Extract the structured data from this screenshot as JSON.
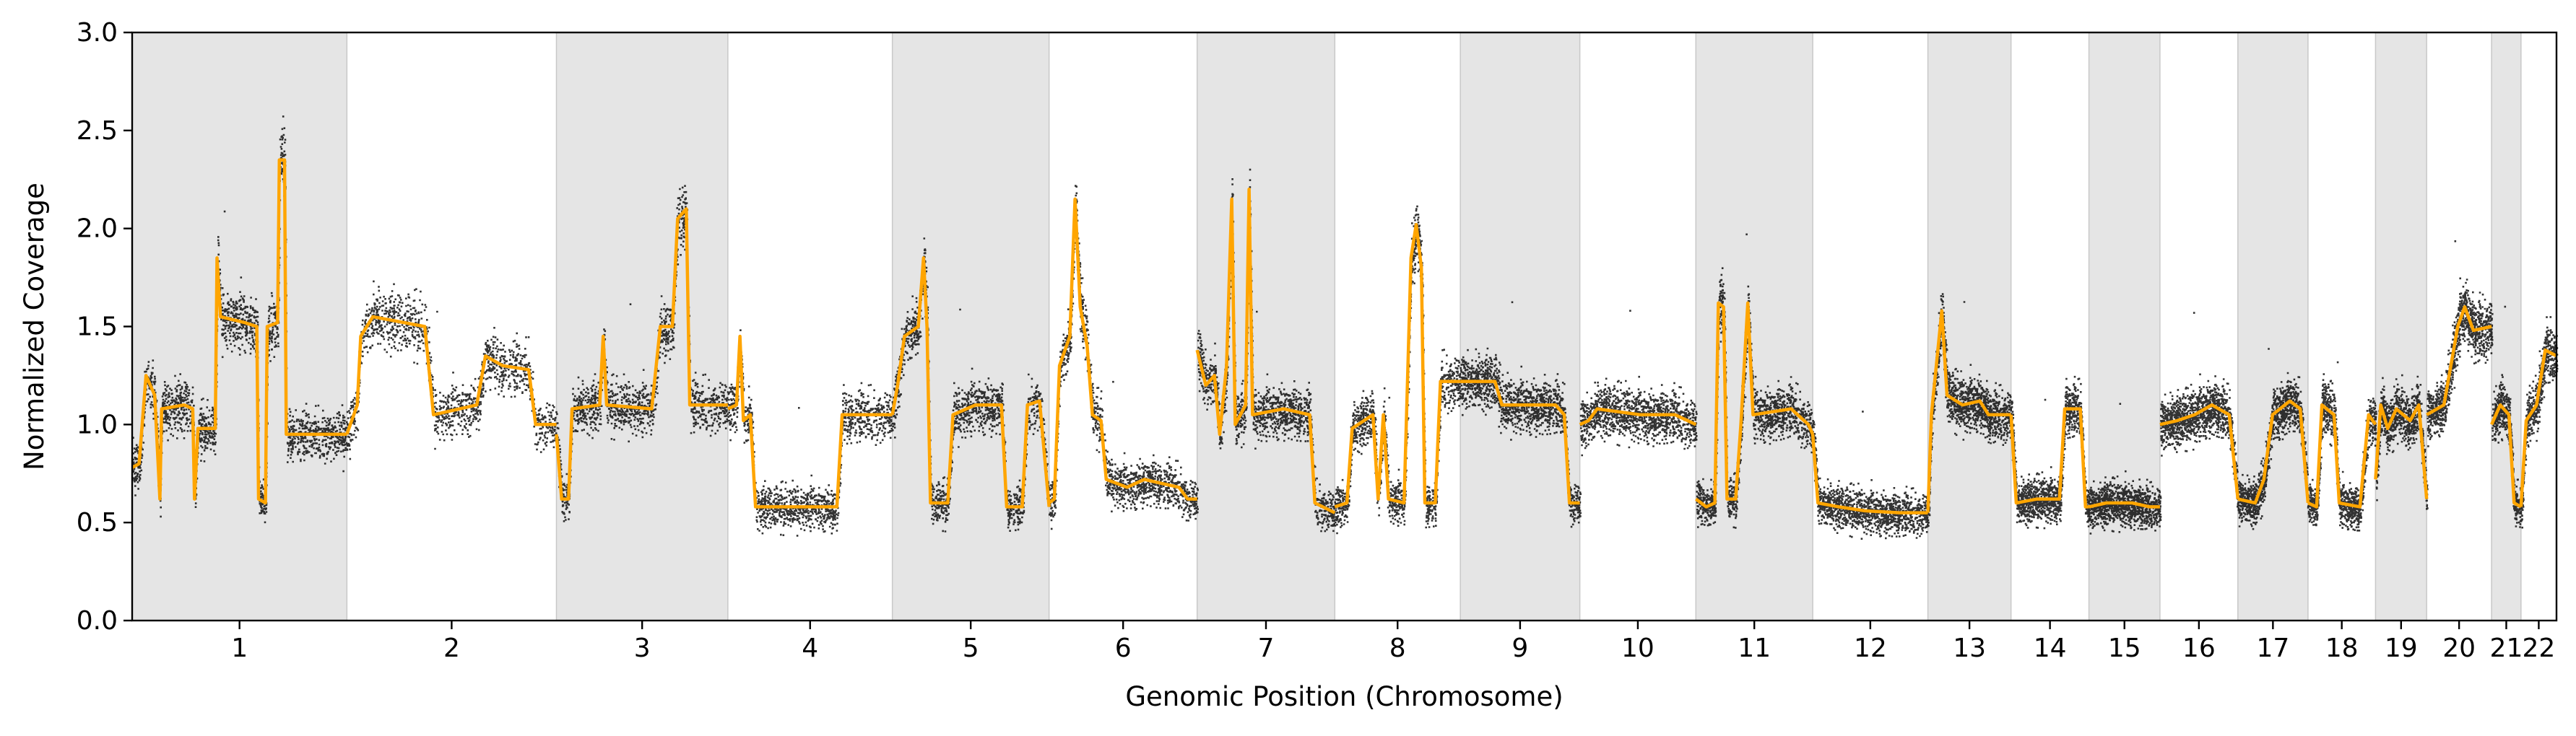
{
  "chart_data": {
    "type": "scatter",
    "xlabel": "Genomic Position (Chromosome)",
    "ylabel": "Normalized Coverage",
    "ylim": [
      0,
      3.0
    ],
    "yticks": [
      0.0,
      0.5,
      1.0,
      1.5,
      2.0,
      2.5,
      3.0
    ],
    "ytick_labels": [
      "0.0",
      "0.5",
      "1.0",
      "1.5",
      "2.0",
      "2.5",
      "3.0"
    ],
    "x_unit": "chromosome position (Mb, cumulative order 1–22)",
    "grid": false,
    "legend": "none",
    "alternating_band_color": "#e5e5e5",
    "points_color": "#000000",
    "segment_color": "#FFA500",
    "chromosomes": [
      {
        "name": "1",
        "length": 248,
        "shaded": true
      },
      {
        "name": "2",
        "length": 242,
        "shaded": false
      },
      {
        "name": "3",
        "length": 198,
        "shaded": true
      },
      {
        "name": "4",
        "length": 190,
        "shaded": false
      },
      {
        "name": "5",
        "length": 181,
        "shaded": true
      },
      {
        "name": "6",
        "length": 171,
        "shaded": false
      },
      {
        "name": "7",
        "length": 159,
        "shaded": true
      },
      {
        "name": "8",
        "length": 145,
        "shaded": false
      },
      {
        "name": "9",
        "length": 138,
        "shaded": true
      },
      {
        "name": "10",
        "length": 134,
        "shaded": false
      },
      {
        "name": "11",
        "length": 135,
        "shaded": true
      },
      {
        "name": "12",
        "length": 133,
        "shaded": false
      },
      {
        "name": "13",
        "length": 96,
        "shaded": true
      },
      {
        "name": "14",
        "length": 90,
        "shaded": false
      },
      {
        "name": "15",
        "length": 82,
        "shaded": true
      },
      {
        "name": "16",
        "length": 90,
        "shaded": false
      },
      {
        "name": "17",
        "length": 81,
        "shaded": true
      },
      {
        "name": "18",
        "length": 78,
        "shaded": false
      },
      {
        "name": "19",
        "length": 59,
        "shaded": true
      },
      {
        "name": "20",
        "length": 75,
        "shaded": false
      },
      {
        "name": "21",
        "length": 34,
        "shaded": true
      },
      {
        "name": "22",
        "length": 41,
        "shaded": false
      }
    ],
    "segments": [
      {
        "chr": "1",
        "points": [
          [
            0,
            0.78
          ],
          [
            8,
            0.8
          ],
          [
            16,
            1.25
          ],
          [
            26,
            1.15
          ],
          [
            32,
            0.62
          ],
          [
            34,
            1.08
          ],
          [
            60,
            1.1
          ],
          [
            70,
            1.08
          ],
          [
            72,
            0.62
          ],
          [
            76,
            0.98
          ],
          [
            96,
            0.98
          ],
          [
            98,
            1.85
          ],
          [
            102,
            1.55
          ],
          [
            130,
            1.52
          ],
          [
            144,
            1.5
          ],
          [
            146,
            0.62
          ],
          [
            154,
            0.6
          ],
          [
            156,
            1.5
          ],
          [
            168,
            1.52
          ],
          [
            170,
            2.35
          ],
          [
            176,
            2.35
          ],
          [
            178,
            0.95
          ],
          [
            248,
            0.95
          ]
        ]
      },
      {
        "chr": "2",
        "points": [
          [
            0,
            0.95
          ],
          [
            12,
            1.1
          ],
          [
            16,
            1.45
          ],
          [
            30,
            1.55
          ],
          [
            90,
            1.5
          ],
          [
            100,
            1.05
          ],
          [
            150,
            1.1
          ],
          [
            160,
            1.35
          ],
          [
            180,
            1.3
          ],
          [
            210,
            1.28
          ],
          [
            218,
            1.0
          ],
          [
            242,
            1.0
          ]
        ]
      },
      {
        "chr": "3",
        "points": [
          [
            0,
            0.95
          ],
          [
            6,
            0.62
          ],
          [
            14,
            0.62
          ],
          [
            18,
            1.08
          ],
          [
            50,
            1.1
          ],
          [
            54,
            1.45
          ],
          [
            58,
            1.1
          ],
          [
            110,
            1.08
          ],
          [
            120,
            1.5
          ],
          [
            134,
            1.5
          ],
          [
            140,
            2.05
          ],
          [
            150,
            2.1
          ],
          [
            154,
            1.1
          ],
          [
            198,
            1.1
          ]
        ]
      },
      {
        "chr": "4",
        "points": [
          [
            0,
            1.08
          ],
          [
            10,
            1.1
          ],
          [
            14,
            1.45
          ],
          [
            18,
            1.02
          ],
          [
            26,
            1.05
          ],
          [
            32,
            0.58
          ],
          [
            120,
            0.58
          ],
          [
            126,
            0.58
          ],
          [
            132,
            1.05
          ],
          [
            190,
            1.05
          ]
        ]
      },
      {
        "chr": "5",
        "points": [
          [
            0,
            1.05
          ],
          [
            6,
            1.2
          ],
          [
            14,
            1.45
          ],
          [
            30,
            1.5
          ],
          [
            36,
            1.85
          ],
          [
            40,
            1.5
          ],
          [
            44,
            0.6
          ],
          [
            64,
            0.6
          ],
          [
            70,
            1.05
          ],
          [
            96,
            1.1
          ],
          [
            126,
            1.1
          ],
          [
            132,
            0.58
          ],
          [
            150,
            0.58
          ],
          [
            156,
            1.1
          ],
          [
            170,
            1.12
          ],
          [
            181,
            0.58
          ]
        ]
      },
      {
        "chr": "6",
        "points": [
          [
            0,
            0.6
          ],
          [
            6,
            0.62
          ],
          [
            12,
            1.3
          ],
          [
            24,
            1.45
          ],
          [
            30,
            2.15
          ],
          [
            36,
            1.6
          ],
          [
            44,
            1.4
          ],
          [
            50,
            1.05
          ],
          [
            60,
            1.02
          ],
          [
            66,
            0.72
          ],
          [
            90,
            0.68
          ],
          [
            110,
            0.72
          ],
          [
            150,
            0.68
          ],
          [
            160,
            0.62
          ],
          [
            171,
            0.62
          ]
        ]
      },
      {
        "chr": "7",
        "points": [
          [
            0,
            1.38
          ],
          [
            10,
            1.2
          ],
          [
            20,
            1.25
          ],
          [
            26,
            0.95
          ],
          [
            34,
            1.3
          ],
          [
            40,
            2.15
          ],
          [
            44,
            1.0
          ],
          [
            56,
            1.1
          ],
          [
            60,
            2.2
          ],
          [
            64,
            1.05
          ],
          [
            100,
            1.08
          ],
          [
            130,
            1.05
          ],
          [
            136,
            0.6
          ],
          [
            159,
            0.55
          ]
        ]
      },
      {
        "chr": "8",
        "points": [
          [
            0,
            0.58
          ],
          [
            14,
            0.6
          ],
          [
            20,
            0.98
          ],
          [
            44,
            1.05
          ],
          [
            50,
            0.62
          ],
          [
            56,
            1.05
          ],
          [
            62,
            0.62
          ],
          [
            80,
            0.6
          ],
          [
            88,
            1.85
          ],
          [
            94,
            2.02
          ],
          [
            100,
            1.8
          ],
          [
            104,
            0.6
          ],
          [
            116,
            0.6
          ],
          [
            122,
            1.22
          ],
          [
            145,
            1.22
          ]
        ]
      },
      {
        "chr": "9",
        "points": [
          [
            0,
            1.22
          ],
          [
            40,
            1.22
          ],
          [
            48,
            1.1
          ],
          [
            110,
            1.1
          ],
          [
            120,
            1.05
          ],
          [
            126,
            0.6
          ],
          [
            138,
            0.6
          ]
        ]
      },
      {
        "chr": "10",
        "points": [
          [
            0,
            1.0
          ],
          [
            10,
            1.02
          ],
          [
            20,
            1.08
          ],
          [
            70,
            1.05
          ],
          [
            110,
            1.05
          ],
          [
            134,
            1.0
          ]
        ]
      },
      {
        "chr": "11",
        "points": [
          [
            0,
            0.62
          ],
          [
            12,
            0.58
          ],
          [
            22,
            0.6
          ],
          [
            26,
            1.62
          ],
          [
            32,
            1.6
          ],
          [
            36,
            0.62
          ],
          [
            46,
            0.62
          ],
          [
            52,
            1.0
          ],
          [
            60,
            1.62
          ],
          [
            66,
            1.05
          ],
          [
            110,
            1.08
          ],
          [
            130,
            1.0
          ],
          [
            135,
            0.95
          ]
        ]
      },
      {
        "chr": "12",
        "points": [
          [
            0,
            0.95
          ],
          [
            6,
            0.6
          ],
          [
            30,
            0.58
          ],
          [
            60,
            0.56
          ],
          [
            100,
            0.55
          ],
          [
            133,
            0.55
          ]
        ]
      },
      {
        "chr": "13",
        "points": [
          [
            0,
            0.55
          ],
          [
            4,
            1.05
          ],
          [
            16,
            1.58
          ],
          [
            22,
            1.15
          ],
          [
            40,
            1.1
          ],
          [
            60,
            1.12
          ],
          [
            70,
            1.05
          ],
          [
            96,
            1.05
          ]
        ]
      },
      {
        "chr": "14",
        "points": [
          [
            0,
            1.05
          ],
          [
            6,
            0.6
          ],
          [
            30,
            0.62
          ],
          [
            56,
            0.62
          ],
          [
            62,
            1.08
          ],
          [
            80,
            1.08
          ],
          [
            86,
            0.58
          ],
          [
            90,
            0.58
          ]
        ]
      },
      {
        "chr": "15",
        "points": [
          [
            0,
            0.58
          ],
          [
            20,
            0.6
          ],
          [
            50,
            0.6
          ],
          [
            70,
            0.58
          ],
          [
            82,
            0.58
          ]
        ]
      },
      {
        "chr": "16",
        "points": [
          [
            0,
            1.0
          ],
          [
            20,
            1.02
          ],
          [
            40,
            1.05
          ],
          [
            60,
            1.1
          ],
          [
            80,
            1.05
          ],
          [
            90,
            0.62
          ]
        ]
      },
      {
        "chr": "17",
        "points": [
          [
            0,
            0.62
          ],
          [
            20,
            0.6
          ],
          [
            30,
            0.72
          ],
          [
            40,
            1.05
          ],
          [
            60,
            1.12
          ],
          [
            72,
            1.08
          ],
          [
            81,
            0.6
          ]
        ]
      },
      {
        "chr": "18",
        "points": [
          [
            0,
            0.6
          ],
          [
            10,
            0.58
          ],
          [
            16,
            1.1
          ],
          [
            30,
            1.05
          ],
          [
            36,
            0.6
          ],
          [
            60,
            0.58
          ],
          [
            70,
            1.05
          ],
          [
            78,
            1.0
          ]
        ]
      },
      {
        "chr": "19",
        "points": [
          [
            0,
            0.72
          ],
          [
            6,
            1.1
          ],
          [
            14,
            0.98
          ],
          [
            24,
            1.08
          ],
          [
            40,
            1.02
          ],
          [
            50,
            1.1
          ],
          [
            59,
            0.62
          ]
        ]
      },
      {
        "chr": "20",
        "points": [
          [
            0,
            1.05
          ],
          [
            20,
            1.1
          ],
          [
            36,
            1.5
          ],
          [
            44,
            1.6
          ],
          [
            54,
            1.48
          ],
          [
            75,
            1.5
          ]
        ]
      },
      {
        "chr": "21",
        "points": [
          [
            0,
            1.0
          ],
          [
            10,
            1.1
          ],
          [
            20,
            1.05
          ],
          [
            26,
            0.6
          ],
          [
            34,
            0.58
          ]
        ]
      },
      {
        "chr": "22",
        "points": [
          [
            0,
            0.58
          ],
          [
            6,
            1.02
          ],
          [
            18,
            1.1
          ],
          [
            28,
            1.38
          ],
          [
            41,
            1.35
          ]
        ]
      }
    ]
  }
}
